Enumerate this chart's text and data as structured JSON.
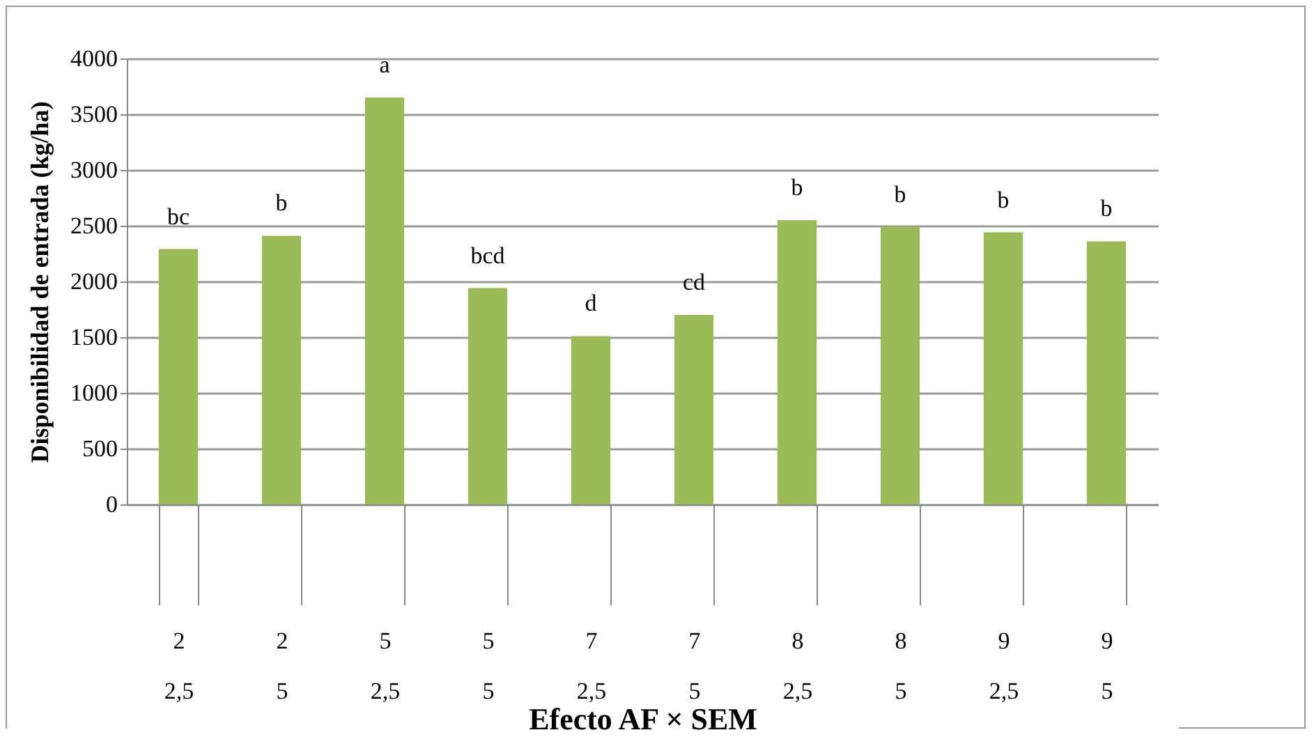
{
  "chart_data": {
    "type": "bar",
    "xlabel": "Efecto AF × SEM",
    "ylabel": "Disponibilidad  de entrada (kg/ha)",
    "categories": [
      "2\n2,5",
      "2\n5",
      "5\n2,5",
      "5\n5",
      "7\n2,5",
      "7\n5",
      "8\n2,5",
      "8\n5",
      "9\n2,5",
      "9\n5"
    ],
    "series": [
      {
        "color": "#9bbb59",
        "values": [
          2290,
          2410,
          3650,
          1940,
          1510,
          1700,
          2550,
          2490,
          2440,
          2360
        ]
      }
    ],
    "ylim": [
      0,
      4000
    ],
    "yticks": [
      0,
      500,
      1000,
      1500,
      2000,
      2500,
      3000,
      3500,
      4000
    ],
    "grid": "y",
    "annotations": [
      {
        "text": "bc",
        "x": "2\n2,5",
        "y": 2290
      },
      {
        "text": "b",
        "x": "2\n5",
        "y": 2410
      },
      {
        "text": "a",
        "x": "5\n2,5",
        "y": 3650
      },
      {
        "text": "bcd",
        "x": "5\n5",
        "y": 1940
      },
      {
        "text": "d",
        "x": "7\n2,5",
        "y": 1510
      },
      {
        "text": "cd",
        "x": "7\n5",
        "y": 1700
      },
      {
        "text": "b",
        "x": "8\n2,5",
        "y": 2550
      },
      {
        "text": "b",
        "x": "8\n5",
        "y": 2490
      },
      {
        "text": "b",
        "x": "9\n2,5",
        "y": 2440
      },
      {
        "text": "b",
        "x": "9\n5",
        "y": 2360
      }
    ]
  }
}
